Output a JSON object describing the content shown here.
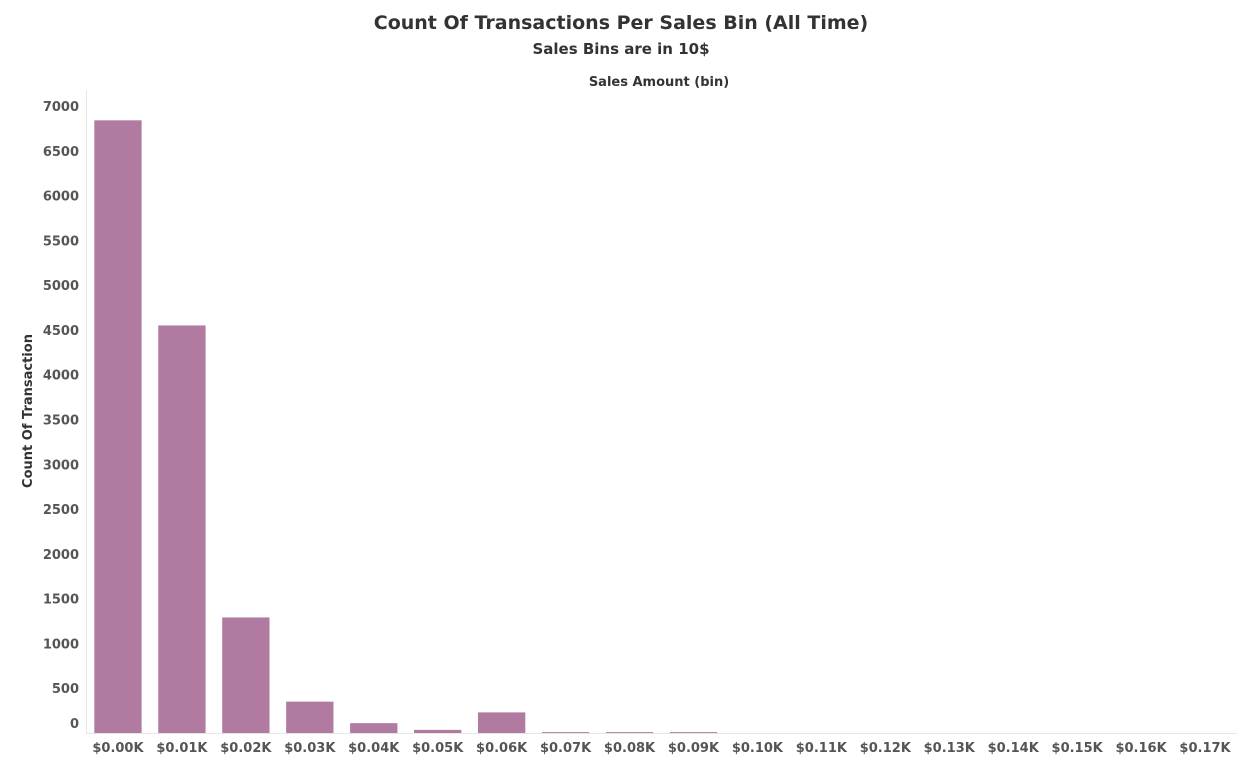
{
  "chart_data": {
    "type": "bar",
    "title": "Count Of Transactions Per Sales Bin (All Time)",
    "subtitle": "Sales Bins are in 10$",
    "xlabel": "Sales Amount (bin)",
    "ylabel": "Count Of Transaction",
    "categories": [
      "$0.00K",
      "$0.01K",
      "$0.02K",
      "$0.03K",
      "$0.04K",
      "$0.05K",
      "$0.06K",
      "$0.07K",
      "$0.08K",
      "$0.09K",
      "$0.10K",
      "$0.11K",
      "$0.12K",
      "$0.13K",
      "$0.14K",
      "$0.15K",
      "$0.16K",
      "$0.17K"
    ],
    "values": [
      6840,
      4550,
      1290,
      350,
      110,
      35,
      230,
      10,
      10,
      10,
      0,
      0,
      0,
      0,
      0,
      0,
      0,
      0
    ],
    "yticks": [
      "0",
      "500",
      "1000",
      "1500",
      "2000",
      "2500",
      "3000",
      "3500",
      "4000",
      "4500",
      "5000",
      "5500",
      "6000",
      "6500",
      "7000"
    ],
    "ylim": [
      0,
      7000
    ],
    "grid": false,
    "legend": "none",
    "bar_color": "#b07aa1"
  }
}
